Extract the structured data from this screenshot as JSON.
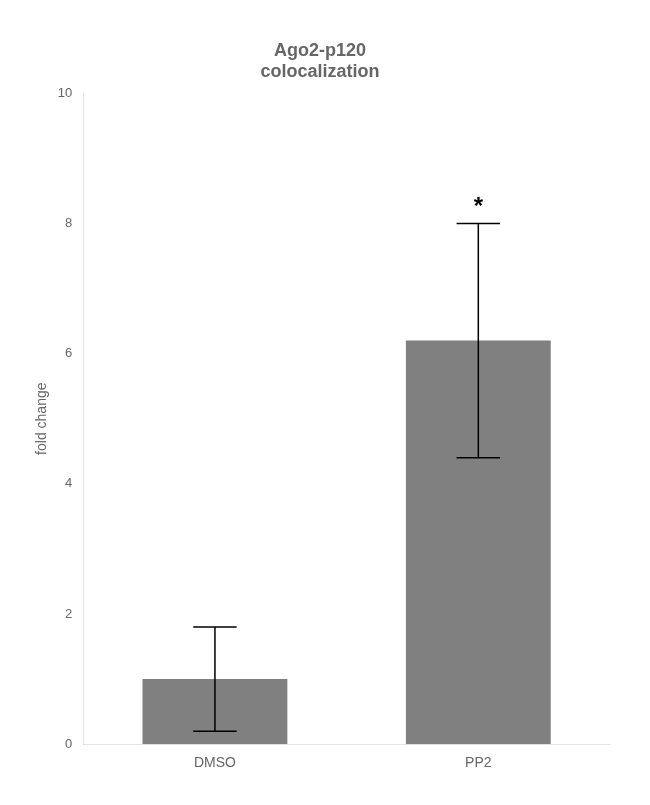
{
  "chart_data": {
    "type": "bar",
    "title": "Ago2-p120\ncolocalization",
    "categories": [
      "DMSO",
      "PP2"
    ],
    "values": [
      1.0,
      6.2
    ],
    "errors": [
      0.8,
      1.8
    ],
    "color": "#808080",
    "y_label": "fold change",
    "ylim": [
      0,
      10
    ],
    "yticks": [
      0,
      2,
      4,
      6,
      8,
      10
    ],
    "grid": false,
    "annotations": [
      {
        "text": "*",
        "category": "PP2"
      }
    ]
  }
}
